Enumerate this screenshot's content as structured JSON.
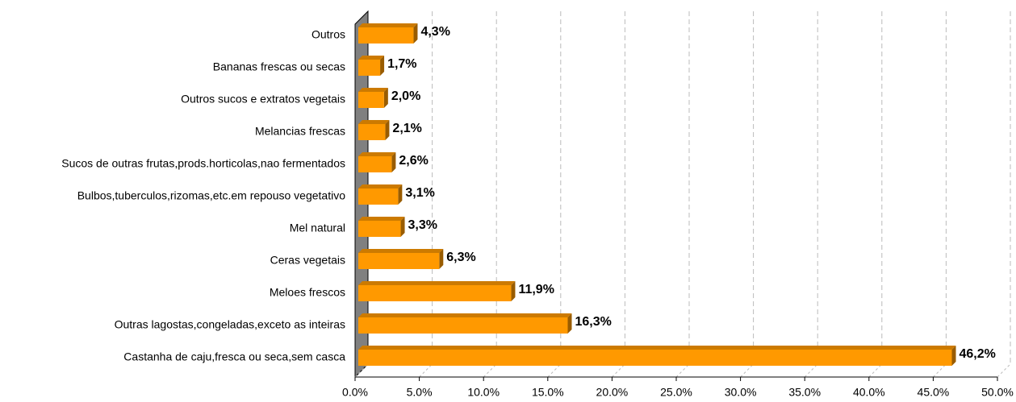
{
  "chart_data": {
    "type": "bar3d_horizontal",
    "categories": [
      "Outros",
      "Bananas frescas ou secas",
      "Outros sucos e extratos vegetais",
      "Melancias frescas",
      "Sucos de outras frutas,prods.horticolas,nao fermentados",
      "Bulbos,tuberculos,rizomas,etc.em repouso vegetativo",
      "Mel natural",
      "Ceras vegetais",
      "Meloes frescos",
      "Outras lagostas,congeladas,exceto as inteiras",
      "Castanha de caju,fresca ou seca,sem casca"
    ],
    "values": [
      4.3,
      1.7,
      2.0,
      2.1,
      2.6,
      3.1,
      3.3,
      6.3,
      11.9,
      16.3,
      46.2
    ],
    "value_labels": [
      "4,3%",
      "1,7%",
      "2,0%",
      "2,1%",
      "2,6%",
      "3,1%",
      "3,3%",
      "6,3%",
      "11,9%",
      "16,3%",
      "46,2%"
    ],
    "color": "#ff9900",
    "xlim": [
      0,
      50
    ],
    "xticks": [
      {
        "value": 0,
        "label": "0.0%"
      },
      {
        "value": 5,
        "label": "5.0%"
      },
      {
        "value": 10,
        "label": "10.0%"
      },
      {
        "value": 15,
        "label": "15.0%"
      },
      {
        "value": 20,
        "label": "20.0%"
      },
      {
        "value": 25,
        "label": "25.0%"
      },
      {
        "value": 30,
        "label": "30.0%"
      },
      {
        "value": 35,
        "label": "35.0%"
      },
      {
        "value": 40,
        "label": "40.0%"
      },
      {
        "value": 45,
        "label": "45.0%"
      },
      {
        "value": 50,
        "label": "50.0%"
      }
    ],
    "grid": true
  }
}
